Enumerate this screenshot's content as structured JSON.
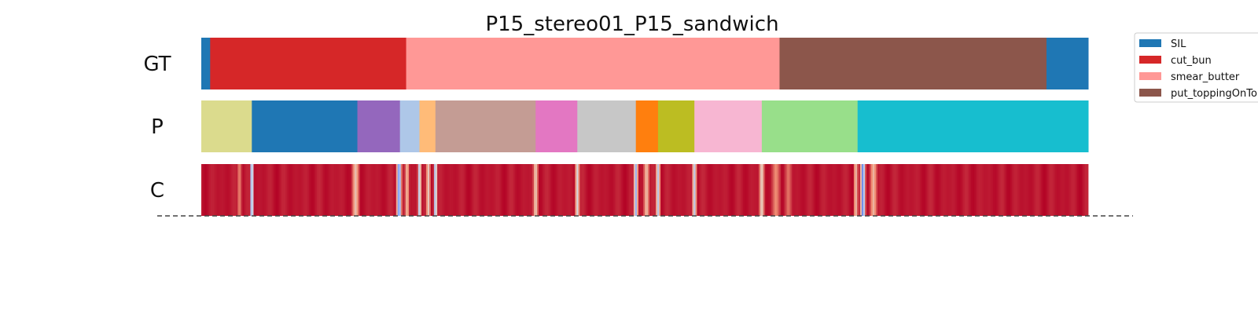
{
  "chart_data": {
    "type": "segmentation",
    "title": "P15_stereo01_P15_sandwich",
    "time_range": [
      0,
      100
    ],
    "rows": [
      {
        "label": "GT",
        "segments": [
          {
            "start": 0.0,
            "end": 1.0,
            "class": "SIL",
            "color": "#1f77b4"
          },
          {
            "start": 1.0,
            "end": 23.1,
            "class": "cut_bun",
            "color": "#d62728"
          },
          {
            "start": 23.1,
            "end": 65.2,
            "class": "smear_butter",
            "color": "#ff9896"
          },
          {
            "start": 65.2,
            "end": 95.3,
            "class": "put_toppingOnTop",
            "color": "#8c564b"
          },
          {
            "start": 95.3,
            "end": 100.0,
            "class": "SIL",
            "color": "#1f77b4"
          }
        ]
      },
      {
        "label": "P",
        "segments": [
          {
            "start": 0.0,
            "end": 5.7,
            "color": "#dbdb8d"
          },
          {
            "start": 5.7,
            "end": 17.6,
            "color": "#1f77b4"
          },
          {
            "start": 17.6,
            "end": 22.4,
            "color": "#9467bd"
          },
          {
            "start": 22.4,
            "end": 24.6,
            "color": "#aec7e8"
          },
          {
            "start": 24.6,
            "end": 26.4,
            "color": "#ffbb78"
          },
          {
            "start": 26.4,
            "end": 37.7,
            "color": "#c49c94"
          },
          {
            "start": 37.7,
            "end": 42.4,
            "color": "#e377c2"
          },
          {
            "start": 42.4,
            "end": 49.0,
            "color": "#c7c7c7"
          },
          {
            "start": 49.0,
            "end": 51.5,
            "color": "#ff7f0e"
          },
          {
            "start": 51.5,
            "end": 55.6,
            "color": "#bcbd22"
          },
          {
            "start": 55.6,
            "end": 63.2,
            "color": "#f7b6d2"
          },
          {
            "start": 63.2,
            "end": 74.0,
            "color": "#98df8a"
          },
          {
            "start": 74.0,
            "end": 100.0,
            "color": "#17becf"
          }
        ]
      },
      {
        "label": "C",
        "colormap": "coolwarm",
        "base_value": 0.97,
        "dips": [
          {
            "at": 4.3,
            "value": 0.75,
            "width": 0.3
          },
          {
            "at": 5.7,
            "value": 0.1,
            "width": 0.25
          },
          {
            "at": 17.4,
            "value": 0.6,
            "width": 0.5
          },
          {
            "at": 22.3,
            "value": 0.05,
            "width": 0.35
          },
          {
            "at": 23.2,
            "value": 0.6,
            "width": 0.3
          },
          {
            "at": 24.6,
            "value": 0.3,
            "width": 0.25
          },
          {
            "at": 25.6,
            "value": 0.55,
            "width": 0.3
          },
          {
            "at": 26.4,
            "value": 0.2,
            "width": 0.25
          },
          {
            "at": 37.7,
            "value": 0.55,
            "width": 0.35
          },
          {
            "at": 42.4,
            "value": 0.45,
            "width": 0.3
          },
          {
            "at": 49.0,
            "value": 0.25,
            "width": 0.3
          },
          {
            "at": 50.2,
            "value": 0.6,
            "width": 0.4
          },
          {
            "at": 51.5,
            "value": 0.35,
            "width": 0.3
          },
          {
            "at": 55.6,
            "value": 0.35,
            "width": 0.3
          },
          {
            "at": 63.2,
            "value": 0.5,
            "width": 0.35
          },
          {
            "at": 64.8,
            "value": 0.75,
            "width": 0.6
          },
          {
            "at": 66.2,
            "value": 0.8,
            "width": 0.5
          },
          {
            "at": 73.8,
            "value": 0.6,
            "width": 0.3
          },
          {
            "at": 74.6,
            "value": 0.05,
            "width": 0.35
          },
          {
            "at": 75.8,
            "value": 0.65,
            "width": 0.5
          }
        ]
      }
    ],
    "legend": {
      "position": "top-right",
      "entries": [
        {
          "label": "SIL",
          "color": "#1f77b4"
        },
        {
          "label": "cut_bun",
          "color": "#d62728"
        },
        {
          "label": "smear_butter",
          "color": "#ff9896"
        },
        {
          "label": "put_toppingOnTop",
          "color": "#8c564b"
        }
      ]
    },
    "baseline": "dashed",
    "grid": false
  }
}
